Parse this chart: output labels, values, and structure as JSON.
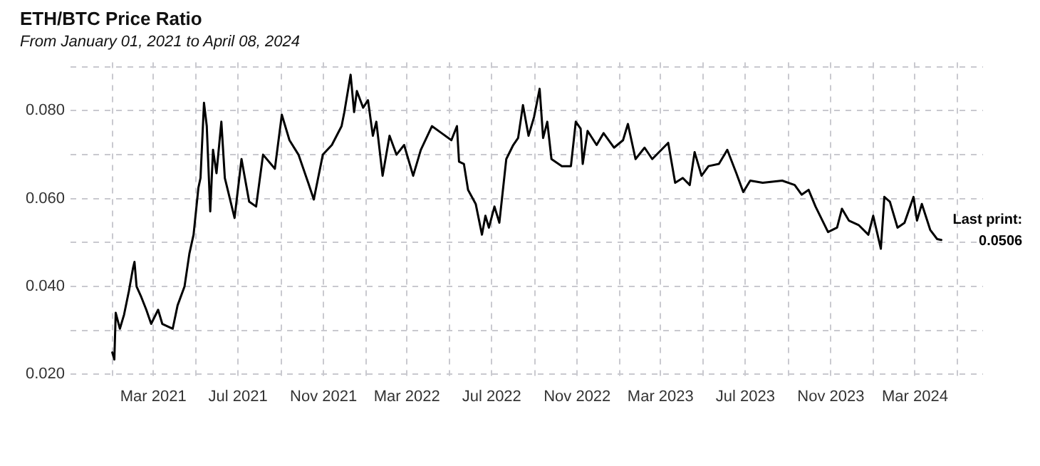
{
  "chart_data": {
    "type": "line",
    "title": "ETH/BTC Price Ratio",
    "subtitle": "From January 01, 2021 to April 08, 2024",
    "x": [
      "2021-01-01",
      "2021-01-04",
      "2021-01-06",
      "2021-01-12",
      "2021-01-18",
      "2021-01-25",
      "2021-01-31",
      "2021-02-02",
      "2021-02-05",
      "2021-02-11",
      "2021-02-19",
      "2021-02-26",
      "2021-03-08",
      "2021-03-14",
      "2021-03-29",
      "2021-04-05",
      "2021-04-15",
      "2021-04-22",
      "2021-04-28",
      "2021-05-05",
      "2021-05-08",
      "2021-05-13",
      "2021-05-17",
      "2021-05-22",
      "2021-05-26",
      "2021-05-31",
      "2021-06-07",
      "2021-06-12",
      "2021-06-26",
      "2021-07-06",
      "2021-07-17",
      "2021-07-27",
      "2021-08-06",
      "2021-08-23",
      "2021-09-02",
      "2021-09-13",
      "2021-09-26",
      "2021-10-10",
      "2021-10-18",
      "2021-10-31",
      "2021-11-13",
      "2021-11-27",
      "2021-12-01",
      "2021-12-10",
      "2021-12-15",
      "2021-12-19",
      "2021-12-28",
      "2022-01-04",
      "2022-01-11",
      "2022-01-16",
      "2022-01-25",
      "2022-02-04",
      "2022-02-14",
      "2022-02-25",
      "2022-03-10",
      "2022-03-21",
      "2022-04-06",
      "2022-04-20",
      "2022-05-04",
      "2022-05-12",
      "2022-05-15",
      "2022-05-22",
      "2022-05-28",
      "2022-06-08",
      "2022-06-17",
      "2022-06-22",
      "2022-06-27",
      "2022-07-05",
      "2022-07-12",
      "2022-07-22",
      "2022-08-01",
      "2022-08-08",
      "2022-08-15",
      "2022-08-23",
      "2022-08-31",
      "2022-09-08",
      "2022-09-13",
      "2022-09-19",
      "2022-09-25",
      "2022-10-10",
      "2022-10-23",
      "2022-10-30",
      "2022-11-06",
      "2022-11-09",
      "2022-11-16",
      "2022-11-29",
      "2022-12-09",
      "2022-12-24",
      "2023-01-06",
      "2023-01-13",
      "2023-01-24",
      "2023-02-06",
      "2023-02-17",
      "2023-03-12",
      "2023-03-22",
      "2023-04-02",
      "2023-04-12",
      "2023-04-19",
      "2023-04-29",
      "2023-05-09",
      "2023-05-24",
      "2023-06-05",
      "2023-06-18",
      "2023-06-28",
      "2023-07-08",
      "2023-07-26",
      "2023-08-23",
      "2023-09-10",
      "2023-09-20",
      "2023-09-30",
      "2023-10-10",
      "2023-10-28",
      "2023-11-10",
      "2023-11-17",
      "2023-11-27",
      "2023-12-11",
      "2023-12-25",
      "2024-01-01",
      "2024-01-12",
      "2024-01-17",
      "2024-01-25",
      "2024-02-05",
      "2024-02-15",
      "2024-02-28",
      "2024-03-04",
      "2024-03-11",
      "2024-03-23",
      "2024-04-02",
      "2024-04-08"
    ],
    "series": [
      {
        "color": "#000000",
        "values": [
          0.025,
          0.0234,
          0.034,
          0.0304,
          0.0336,
          0.039,
          0.0443,
          0.0456,
          0.04,
          0.0379,
          0.0347,
          0.0315,
          0.0347,
          0.0315,
          0.0304,
          0.0357,
          0.04,
          0.0475,
          0.0518,
          0.0625,
          0.0647,
          0.0818,
          0.0765,
          0.0571,
          0.0711,
          0.0658,
          0.0775,
          0.0647,
          0.0556,
          0.069,
          0.0593,
          0.0582,
          0.07,
          0.0668,
          0.0791,
          0.0733,
          0.07,
          0.0636,
          0.0598,
          0.07,
          0.0722,
          0.0765,
          0.0797,
          0.0882,
          0.0797,
          0.0845,
          0.0807,
          0.0824,
          0.0743,
          0.0775,
          0.0652,
          0.0743,
          0.07,
          0.0722,
          0.0652,
          0.0711,
          0.0765,
          0.0749,
          0.0733,
          0.0765,
          0.0684,
          0.0679,
          0.062,
          0.0588,
          0.0518,
          0.0561,
          0.0534,
          0.0582,
          0.0545,
          0.069,
          0.0722,
          0.0738,
          0.0813,
          0.0743,
          0.0786,
          0.085,
          0.0738,
          0.0775,
          0.069,
          0.0674,
          0.0674,
          0.0775,
          0.0759,
          0.0679,
          0.0754,
          0.0722,
          0.0749,
          0.0716,
          0.0733,
          0.077,
          0.069,
          0.0716,
          0.069,
          0.0727,
          0.0636,
          0.0647,
          0.0631,
          0.0706,
          0.0652,
          0.0674,
          0.0679,
          0.0711,
          0.0658,
          0.0615,
          0.0641,
          0.0636,
          0.0641,
          0.0631,
          0.0609,
          0.062,
          0.0582,
          0.0524,
          0.0534,
          0.0577,
          0.055,
          0.054,
          0.0518,
          0.0561,
          0.0486,
          0.0604,
          0.0593,
          0.0534,
          0.0545,
          0.0604,
          0.055,
          0.0588,
          0.0529,
          0.0508,
          0.0506
        ]
      }
    ],
    "xlim": [
      "2020-11-02",
      "2024-06-07"
    ],
    "xticks": [
      {
        "value": "2021-01-01",
        "label": null
      },
      {
        "value": "2021-03-01",
        "label": "Mar 2021"
      },
      {
        "value": "2021-05-01",
        "label": null
      },
      {
        "value": "2021-07-01",
        "label": "Jul 2021"
      },
      {
        "value": "2021-09-01",
        "label": null
      },
      {
        "value": "2021-11-01",
        "label": "Nov 2021"
      },
      {
        "value": "2022-01-01",
        "label": null
      },
      {
        "value": "2022-03-01",
        "label": "Mar 2022"
      },
      {
        "value": "2022-05-01",
        "label": null
      },
      {
        "value": "2022-07-01",
        "label": "Jul 2022"
      },
      {
        "value": "2022-09-01",
        "label": null
      },
      {
        "value": "2022-11-01",
        "label": "Nov 2022"
      },
      {
        "value": "2023-01-01",
        "label": null
      },
      {
        "value": "2023-03-01",
        "label": "Mar 2023"
      },
      {
        "value": "2023-05-01",
        "label": null
      },
      {
        "value": "2023-07-01",
        "label": "Jul 2023"
      },
      {
        "value": "2023-09-01",
        "label": null
      },
      {
        "value": "2023-11-01",
        "label": "Nov 2023"
      },
      {
        "value": "2024-01-01",
        "label": null
      },
      {
        "value": "2024-03-01",
        "label": "Mar 2024"
      },
      {
        "value": "2024-05-01",
        "label": null
      }
    ],
    "ylim": [
      0.019,
      0.091
    ],
    "yticks": [
      {
        "value": 0.02,
        "label": "0.020"
      },
      {
        "value": 0.03,
        "label": null
      },
      {
        "value": 0.04,
        "label": "0.040"
      },
      {
        "value": 0.05,
        "label": null
      },
      {
        "value": 0.06,
        "label": "0.060"
      },
      {
        "value": 0.07,
        "label": null
      },
      {
        "value": 0.08,
        "label": "0.080"
      },
      {
        "value": 0.09,
        "label": null
      }
    ],
    "grid": true,
    "legend": false,
    "marker": "none",
    "line_style": "solid",
    "annotations": [
      {
        "text": "Last print: 0.0506",
        "x": "2024-04-08",
        "y": 0.0506
      }
    ]
  }
}
